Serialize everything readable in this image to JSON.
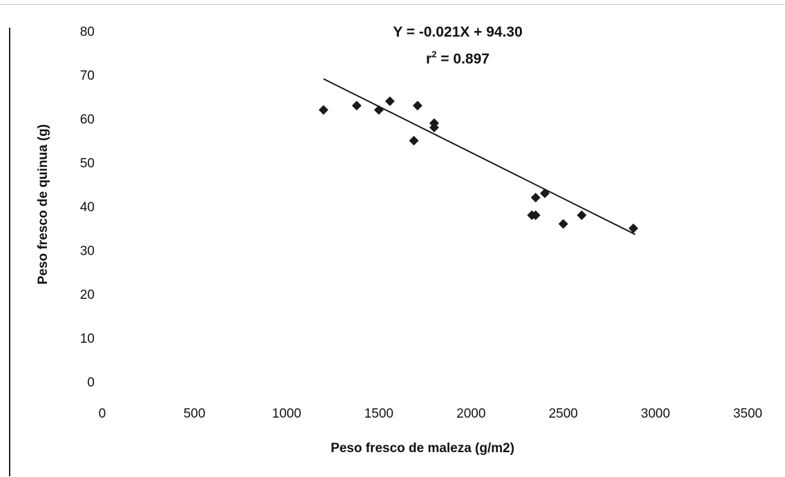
{
  "chart_data": {
    "type": "scatter",
    "title": "",
    "xlabel": "Peso fresco de maleza (g/m2)",
    "ylabel": "Peso fresco de quinua (g)",
    "xlim": [
      0,
      3500
    ],
    "ylim": [
      0,
      80
    ],
    "x_ticks": [
      "0",
      "500",
      "1000",
      "1500",
      "2000",
      "2500",
      "3000",
      "3500"
    ],
    "y_ticks": [
      "0",
      "10",
      "20",
      "30",
      "40",
      "50",
      "60",
      "70",
      "80"
    ],
    "grid": false,
    "legend": "none",
    "marker_color": "#1a1a1a",
    "points": [
      {
        "x": 1200,
        "y": 62
      },
      {
        "x": 1380,
        "y": 63
      },
      {
        "x": 1500,
        "y": 62
      },
      {
        "x": 1560,
        "y": 64
      },
      {
        "x": 1690,
        "y": 55
      },
      {
        "x": 1710,
        "y": 63
      },
      {
        "x": 1800,
        "y": 59
      },
      {
        "x": 1800,
        "y": 58
      },
      {
        "x": 2330,
        "y": 38
      },
      {
        "x": 2350,
        "y": 38
      },
      {
        "x": 2350,
        "y": 42
      },
      {
        "x": 2400,
        "y": 43
      },
      {
        "x": 2500,
        "y": 36
      },
      {
        "x": 2600,
        "y": 38
      },
      {
        "x": 2880,
        "y": 35
      }
    ],
    "trendline": {
      "slope": -0.021,
      "intercept": 94.3,
      "x_range": [
        1200,
        2890
      ],
      "equation": "Y = -0.021X + 94.30",
      "r2_prefix": "r",
      "r2_exponent": "2",
      "r2_value": " = 0.897"
    }
  }
}
